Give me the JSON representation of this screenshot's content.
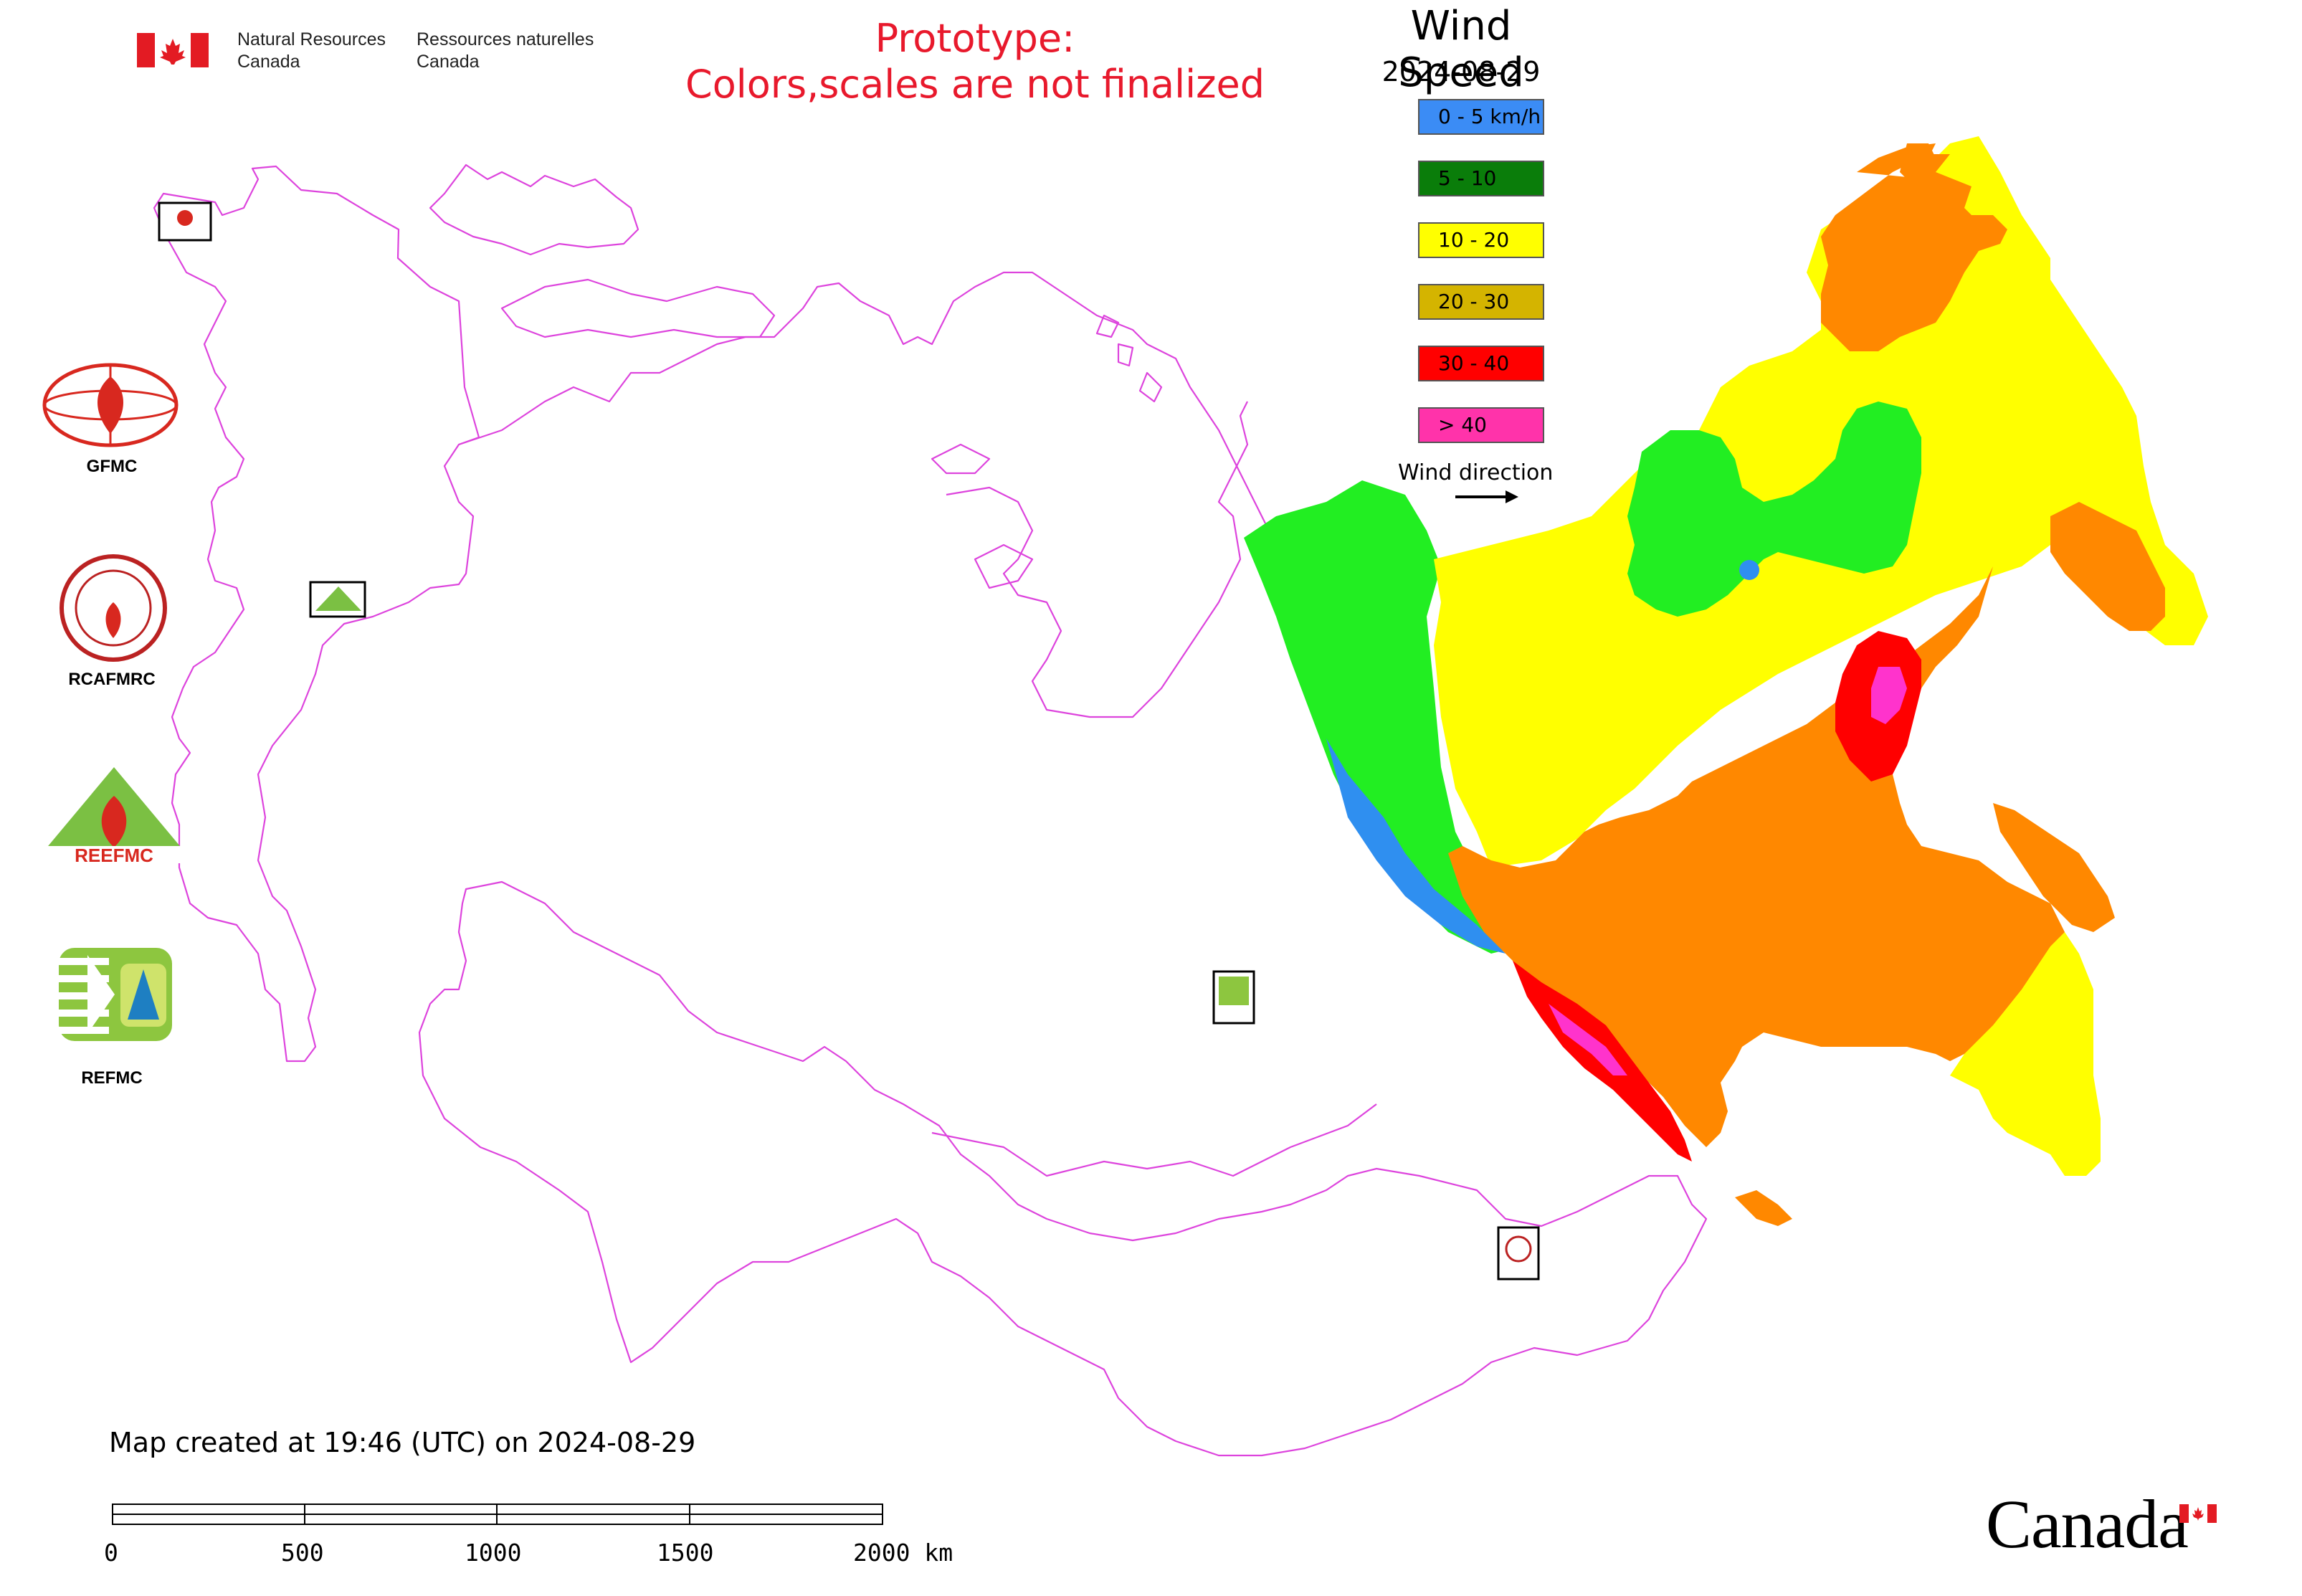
{
  "header": {
    "agency_en": [
      "Natural Resources",
      "Canada"
    ],
    "agency_fr": [
      "Ressources naturelles",
      "Canada"
    ],
    "prototype_notice": [
      "Prototype:",
      "Colors,scales are not finalized"
    ]
  },
  "map": {
    "title": "Wind Speed",
    "date": "2024-08-29",
    "legend": [
      {
        "label": "0 - 5 km/h",
        "color": "#3b8cf5"
      },
      {
        "label": "5 - 10",
        "color": "#0a7d0a"
      },
      {
        "label": "10 - 20",
        "color": "#ffff00"
      },
      {
        "label": "20 - 30",
        "color": "#d4b400"
      },
      {
        "label": "30 - 40",
        "color": "#ff0000"
      },
      {
        "label": "> 40",
        "color": "#ff33aa"
      }
    ],
    "wind_direction_label": "Wind direction",
    "boundary_color": "#dd44dd"
  },
  "organizations": [
    {
      "label": "GFMC"
    },
    {
      "label": "RCAFMRC"
    },
    {
      "label": "REEFMC"
    },
    {
      "label": "REFMC"
    }
  ],
  "footer": {
    "created": "Map created at 19:46 (UTC) on 2024-08-29",
    "scale_labels": [
      "0",
      "500",
      "1000",
      "1500",
      "2000 km"
    ],
    "wordmark": "Canada"
  }
}
